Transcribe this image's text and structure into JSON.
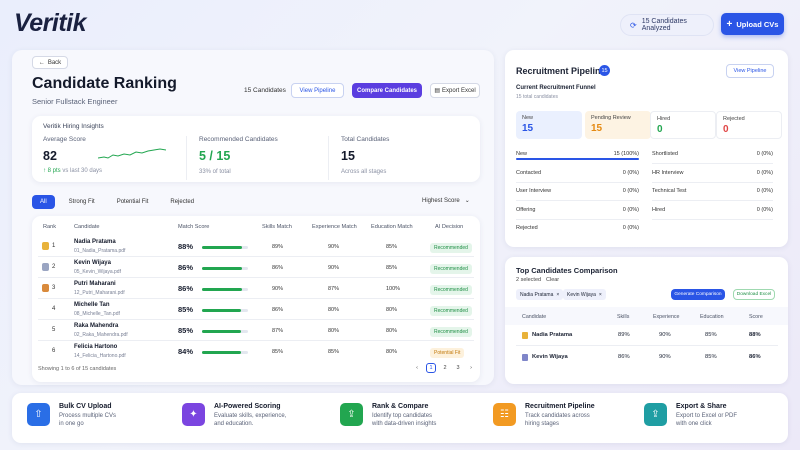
{
  "brand": {
    "name": "Veritik"
  },
  "header": {
    "analyzed": "15 Candidates Analyzed",
    "upload": "Upload CVs",
    "upload_plus": "+"
  },
  "ranking": {
    "back": "Back",
    "title": "Candidate Ranking",
    "subtitle": "Senior Fullstack Engineer",
    "count": "15 Candidates",
    "view_pipeline": "View Pipeline",
    "compare": "Compare Candidates",
    "export": "Export Excel",
    "insights": {
      "title": "Veritik Hiring Insights",
      "avg_label": "Average Score",
      "avg_value": "82",
      "avg_delta": "↑ 8 pts",
      "avg_delta_suffix": "vs last 30 days",
      "rec_label": "Recommended Candidates",
      "rec_value": "5 / 15",
      "rec_pct": "33% of total",
      "total_label": "Total Candidates",
      "total_value": "15",
      "total_sub": "Across all stages"
    },
    "tabs": [
      "All",
      "Strong Fit",
      "Potential Fit",
      "Rejected"
    ],
    "sort": "Highest Score",
    "columns": [
      "Rank",
      "Candidate",
      "Match Score",
      "Skills Match",
      "Experience Match",
      "Education Match",
      "AI Decision"
    ],
    "rows": [
      {
        "rank": "1",
        "name": "Nadia Pratama",
        "file": "01_Nadia_Pratama.pdf",
        "score": "88%",
        "score_frac": 0.88,
        "skills": "89%",
        "exp": "90%",
        "edu": "85%",
        "decision": "Recommended",
        "medal": "gold"
      },
      {
        "rank": "2",
        "name": "Kevin Wijaya",
        "file": "05_Kevin_Wijaya.pdf",
        "score": "86%",
        "score_frac": 0.86,
        "skills": "86%",
        "exp": "90%",
        "edu": "85%",
        "decision": "Recommended",
        "medal": "silver"
      },
      {
        "rank": "3",
        "name": "Putri Maharani",
        "file": "12_Putri_Maharani.pdf",
        "score": "86%",
        "score_frac": 0.86,
        "skills": "90%",
        "exp": "87%",
        "edu": "100%",
        "decision": "Recommended",
        "medal": "bronze"
      },
      {
        "rank": "4",
        "name": "Michelle Tan",
        "file": "08_Michelle_Tan.pdf",
        "score": "85%",
        "score_frac": 0.85,
        "skills": "86%",
        "exp": "80%",
        "edu": "80%",
        "decision": "Recommended",
        "medal": ""
      },
      {
        "rank": "5",
        "name": "Raka Mahendra",
        "file": "02_Raka_Mahendra.pdf",
        "score": "85%",
        "score_frac": 0.85,
        "skills": "87%",
        "exp": "80%",
        "edu": "80%",
        "decision": "Recommended",
        "medal": ""
      },
      {
        "rank": "6",
        "name": "Felicia Hartono",
        "file": "14_Felicia_Hartono.pdf",
        "score": "84%",
        "score_frac": 0.84,
        "skills": "85%",
        "exp": "85%",
        "edu": "80%",
        "decision": "Potential Fit",
        "medal": ""
      }
    ],
    "showing": "Showing 1 to 6 of 15 candidates",
    "pages": [
      "1",
      "2",
      "3"
    ]
  },
  "pipeline": {
    "title": "Recruitment Pipeline",
    "count": "15",
    "view": "View Pipeline",
    "funnel_title": "Current Recruitment Funnel",
    "funnel_sub": "15 total candidates",
    "boxes": [
      {
        "label": "New",
        "value": "15",
        "color": "#2a55e6",
        "bg": "#eaf0fe"
      },
      {
        "label": "Pending Review",
        "value": "15",
        "color": "#e58a12",
        "bg": "#fdf3e3"
      },
      {
        "label": "Hired",
        "value": "0",
        "color": "#22a650",
        "bg": "#ffffff"
      },
      {
        "label": "Rejected",
        "value": "0",
        "color": "#e04545",
        "bg": "#ffffff"
      }
    ],
    "left_stages": [
      {
        "name": "New",
        "value": "15 (100%)",
        "fill": 1.0
      },
      {
        "name": "Contacted",
        "value": "0 (0%)",
        "fill": 0
      },
      {
        "name": "User Interview",
        "value": "0 (0%)",
        "fill": 0
      },
      {
        "name": "Offering",
        "value": "0 (0%)",
        "fill": 0
      },
      {
        "name": "Rejected",
        "value": "0 (0%)",
        "fill": 0
      }
    ],
    "right_stages": [
      {
        "name": "Shortlisted",
        "value": "0 (0%)"
      },
      {
        "name": "HR Interview",
        "value": "0 (0%)"
      },
      {
        "name": "Technical Test",
        "value": "0 (0%)"
      },
      {
        "name": "Hired",
        "value": "0 (0%)"
      }
    ]
  },
  "compare": {
    "title": "Top Candidates Comparison",
    "selected": "2 selected",
    "clear": "Clear",
    "chips": [
      "Nadia Pratama",
      "Kevin Wijaya"
    ],
    "generate": "Generate Comparison",
    "download": "Download Excel",
    "columns": [
      "Candidate",
      "Skills",
      "Experience",
      "Education",
      "Score"
    ],
    "rows": [
      {
        "name": "Nadia Pratama",
        "skills": "89%",
        "exp": "90%",
        "edu": "85%",
        "score": "88%"
      },
      {
        "name": "Kevin Wijaya",
        "skills": "86%",
        "exp": "90%",
        "edu": "85%",
        "score": "86%"
      }
    ]
  },
  "features": [
    {
      "title": "Bulk CV Upload",
      "desc": "Process multiple CVs\nin one go",
      "icon": "upload-icon",
      "color": "#2a6ee6"
    },
    {
      "title": "AI-Powered Scoring",
      "desc": "Evaluate skills, experience,\nand education.",
      "icon": "sparkle-icon",
      "color": "#7b45e0"
    },
    {
      "title": "Rank & Compare",
      "desc": "Identify top candidates\nwith data-driven insights",
      "icon": "rank-icon",
      "color": "#22a650"
    },
    {
      "title": "Recruitment Pipeline",
      "desc": "Track candidates across\nhiring stages",
      "icon": "pipeline-icon",
      "color": "#f29a22"
    },
    {
      "title": "Export & Share",
      "desc": "Export to Excel or PDF\nwith one click",
      "icon": "export-icon",
      "color": "#1f9ea3"
    }
  ]
}
